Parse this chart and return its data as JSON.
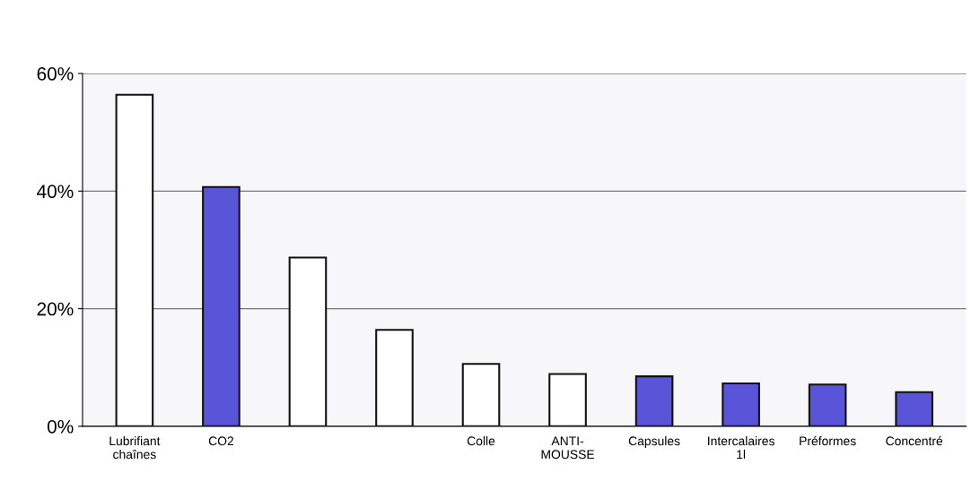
{
  "chart_data": {
    "type": "bar",
    "categories": [
      "Lubrifiant\nchaînes",
      "CO2",
      null,
      null,
      "Colle",
      "ANTI-\nMOUSSE",
      "Capsules",
      "Intercalaires\n1l",
      "Préformes",
      "Concentré"
    ],
    "values": [
      56.4,
      40.7,
      28.7,
      16.4,
      10.6,
      8.9,
      8.5,
      7.3,
      7.1,
      5.8
    ],
    "colors": [
      "#ffffff",
      "#5a55d8",
      "#ffffff",
      "#ffffff",
      "#ffffff",
      "#ffffff",
      "#5a55d8",
      "#5a55d8",
      "#5a55d8",
      "#5a55d8"
    ],
    "ylim": [
      0,
      60
    ],
    "yticks": [
      {
        "value": 0,
        "label": "0%"
      },
      {
        "value": 20,
        "label": "20%"
      },
      {
        "value": 40,
        "label": "40%"
      },
      {
        "value": 60,
        "label": "60%"
      }
    ],
    "grid": "y"
  }
}
